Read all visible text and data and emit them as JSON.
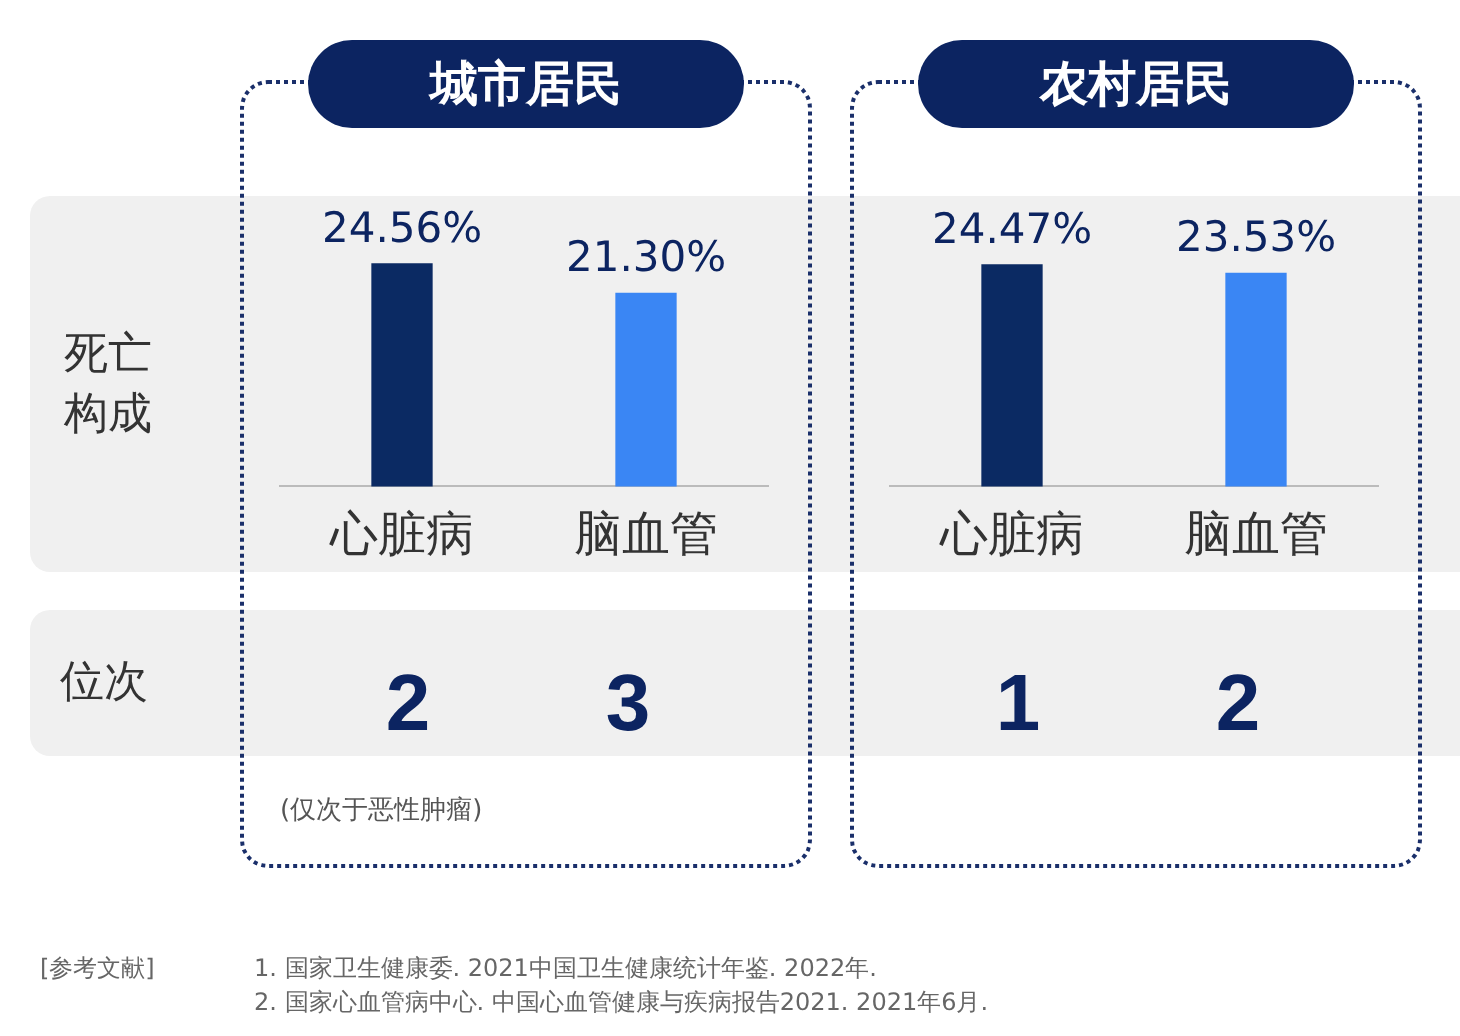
{
  "chart_data": [
    {
      "type": "bar",
      "title": "城市居民",
      "categories": [
        "心脏病",
        "脑血管"
      ],
      "values": [
        24.56,
        21.3
      ],
      "colors": [
        "#0b2a63",
        "#3a86f4"
      ],
      "value_labels": [
        "24.56%",
        "21.30%"
      ],
      "annotations": [
        "2",
        "3",
        "(仅次于恶性肿瘤)",
        "死亡构成",
        "位次",
        "[参考文献]",
        "1. 国家卫生健康委. 2021中国卫生健康统计年鉴. 2022年.",
        "2. 国家心血管病中心. 中国心血管健康与疾病报告2021. 2021年6月."
      ]
    },
    {
      "type": "bar",
      "title": "农村居民",
      "categories": [
        "心脏病",
        "脑血管"
      ],
      "values": [
        24.47,
        23.53
      ],
      "colors": [
        "#0b2a63",
        "#3a86f4"
      ],
      "value_labels": [
        "24.47%",
        "23.53%"
      ],
      "annotations": [
        "1",
        "2"
      ]
    }
  ]
}
